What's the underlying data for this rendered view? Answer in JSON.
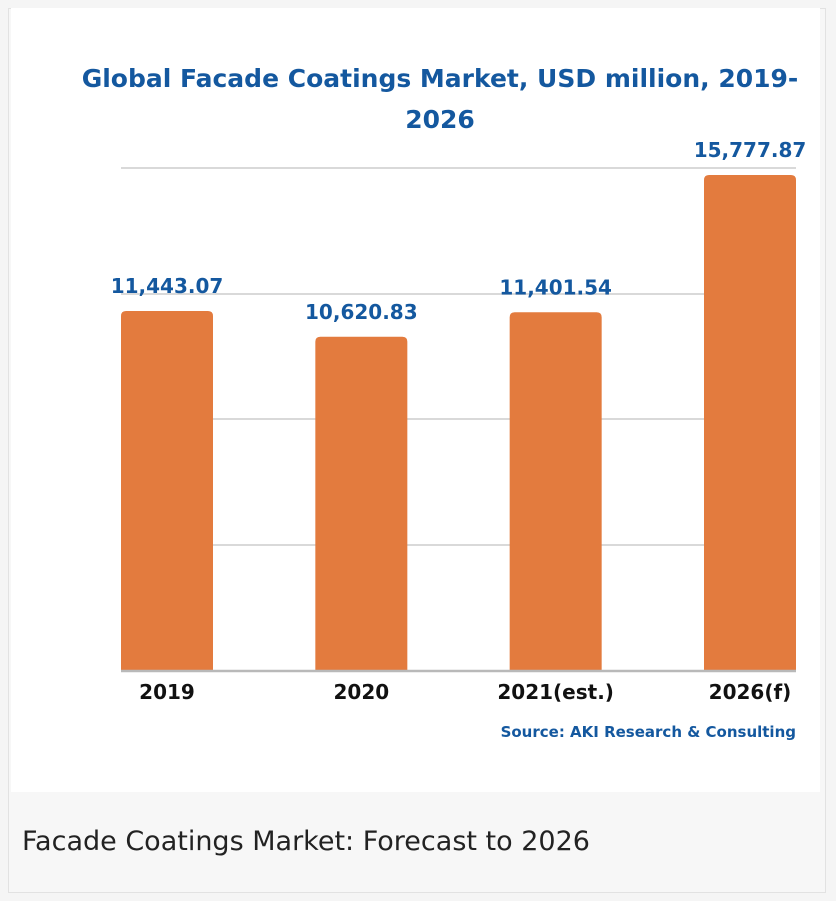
{
  "chart_data": {
    "type": "bar",
    "title": "Global Facade Coatings Market, USD million, 2019-2026",
    "categories": [
      "2019",
      "2020",
      "2021(est.)",
      "2026(f)"
    ],
    "values": [
      11443.07,
      10620.83,
      11401.54,
      15777.87
    ],
    "value_labels": [
      "11,443.07",
      "10,620.83",
      "11,401.54",
      "15,777.87"
    ],
    "xlabel": "",
    "ylabel": "",
    "ylim": [
      0,
      16000
    ],
    "grid": true,
    "source": "Source: AKI Research & Consulting",
    "colors": {
      "bar": "#e37b3e",
      "value_label": "#14589f",
      "title": "#14589f",
      "grid": "#d9d9d9",
      "baseline": "#b9b9b9"
    }
  },
  "caption": "Facade Coatings Market: Forecast to 2026"
}
